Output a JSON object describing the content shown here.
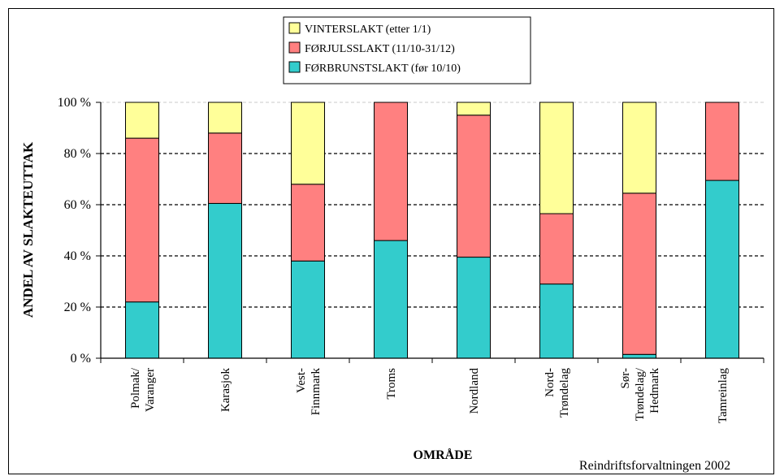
{
  "chart_data": {
    "type": "bar",
    "stacked": true,
    "categories": [
      [
        "Polmak/",
        "Varanger"
      ],
      [
        "Karasjok"
      ],
      [
        "Vest-",
        "Finnmark"
      ],
      [
        "Troms"
      ],
      [
        "Nordland"
      ],
      [
        "Nord-",
        "Trøndelag"
      ],
      [
        "Sør-",
        "Trøndelag/",
        "Hedmark"
      ],
      [
        "Tamreinlag"
      ]
    ],
    "series": [
      {
        "name": "FØRBRUNSTSLAKT (før 10/10)",
        "color": "#33CCCC",
        "values": [
          22,
          60.5,
          38,
          46,
          39.5,
          29,
          1.5,
          69.5
        ]
      },
      {
        "name": "FØRJULSSLAKT (11/10-31/12)",
        "color": "#FF8080",
        "values": [
          64,
          27.5,
          30,
          54,
          55.5,
          27.5,
          63,
          30.5
        ]
      },
      {
        "name": "VINTERSLAKT (etter 1/1)",
        "color": "#FFFF99",
        "values": [
          14,
          12,
          32,
          0,
          5,
          43.5,
          35.5,
          0
        ]
      }
    ],
    "legend_order": [
      2,
      1,
      0
    ],
    "legend_position": "top-center",
    "ylim": [
      0,
      100
    ],
    "yticks": [
      0,
      20,
      40,
      60,
      80,
      100
    ],
    "ytick_labels": [
      "0 %",
      "20 %",
      "40 %",
      "60 %",
      "80 %",
      "100 %"
    ],
    "ylabel": "ANDEL AV SLAKTEUTTAK",
    "xlabel": "OMRÅDE",
    "grid": "horizontal-dashed",
    "source": "Reindriftsforvaltningen 2002"
  }
}
